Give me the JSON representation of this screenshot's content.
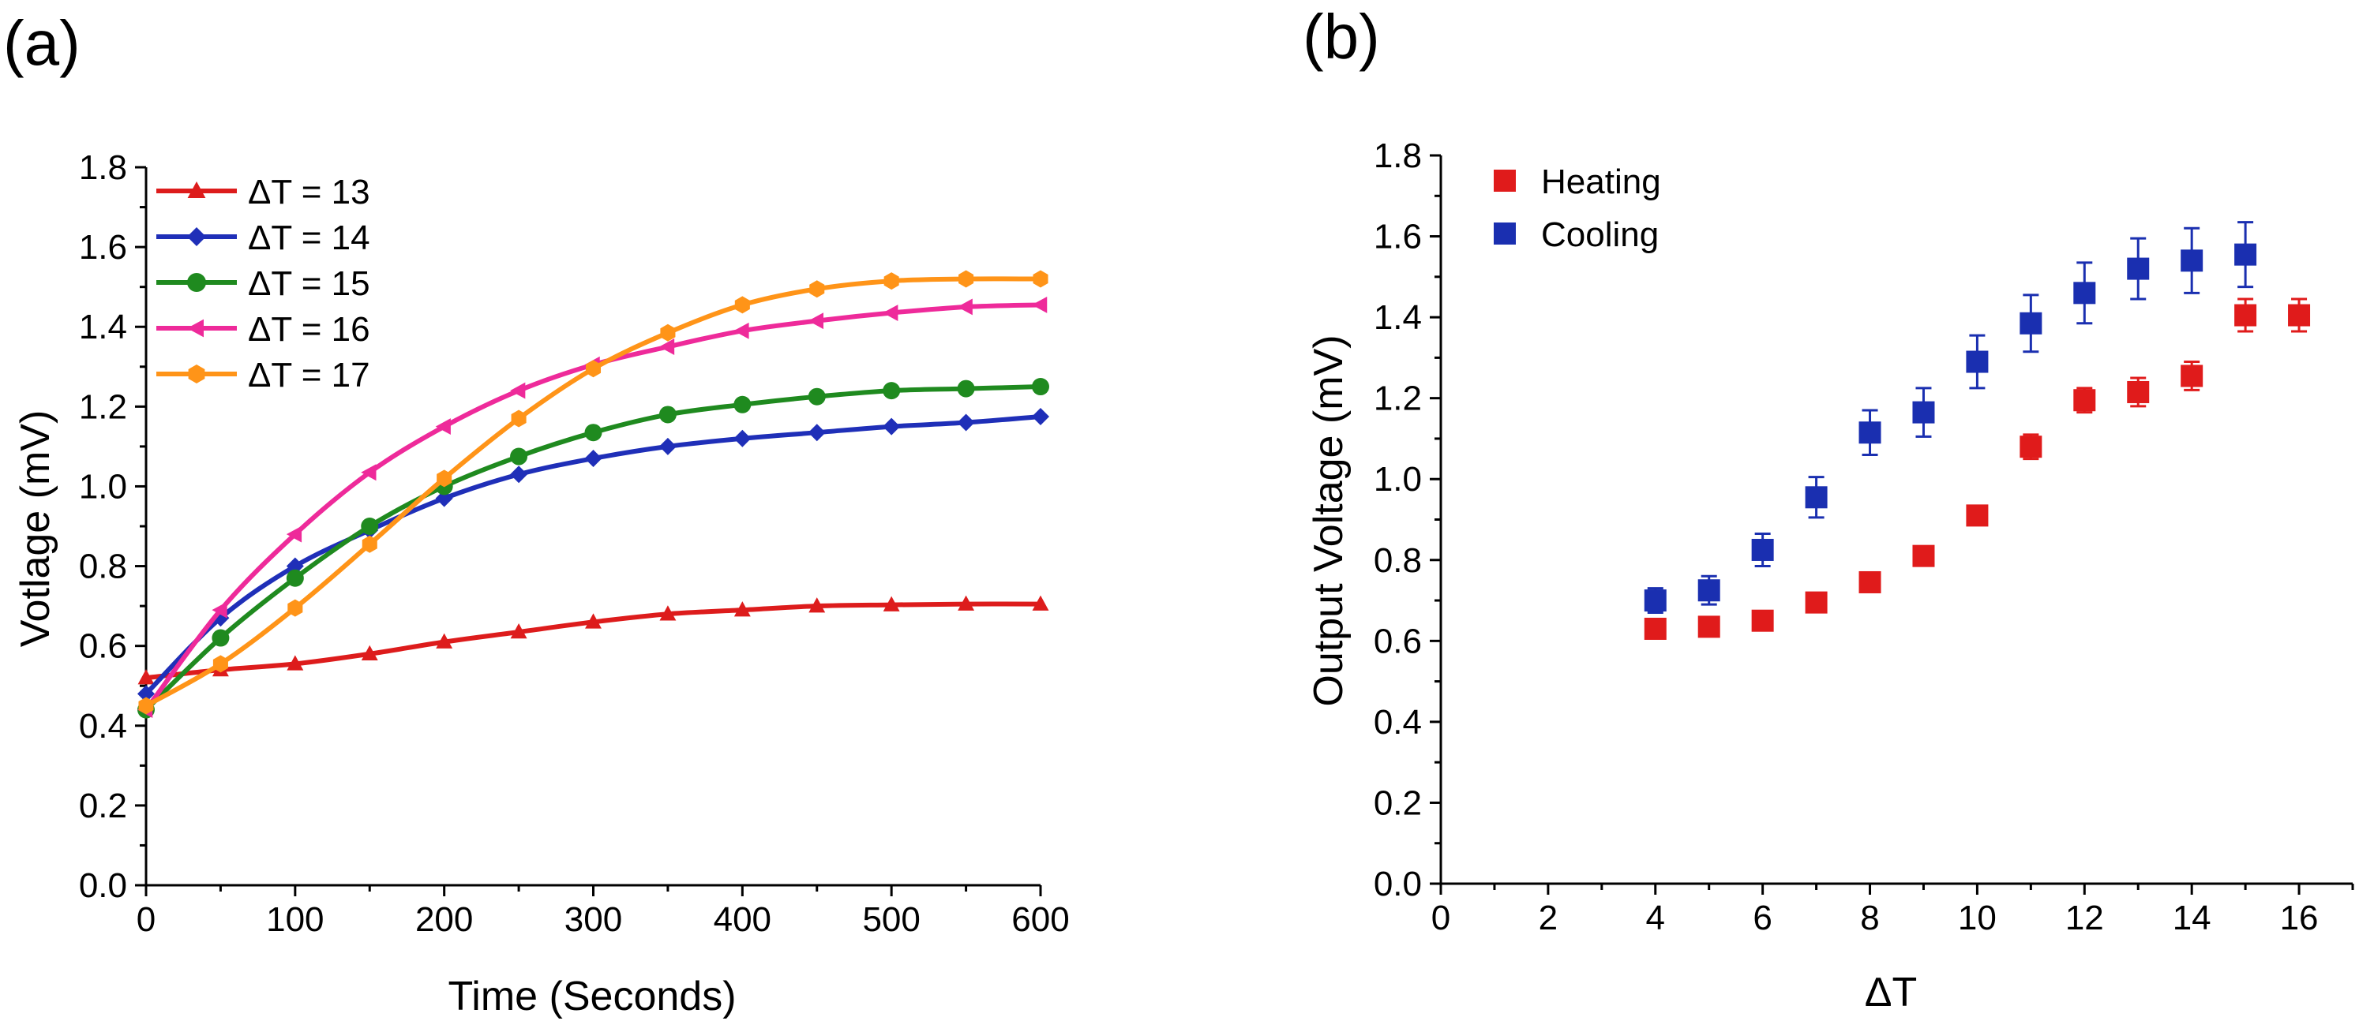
{
  "chart_data": [
    {
      "panel": "(a)",
      "type": "line",
      "title": "",
      "xlabel": "Time (Seconds)",
      "ylabel": "Votlage (mV)",
      "xlim": [
        0,
        600
      ],
      "ylim": [
        0.0,
        1.8
      ],
      "xticks": [
        "0",
        "100",
        "200",
        "300",
        "400",
        "500",
        "600"
      ],
      "yticks": [
        "0.0",
        "0.2",
        "0.4",
        "0.6",
        "0.8",
        "1.0",
        "1.2",
        "1.4",
        "1.6",
        "1.8"
      ],
      "x": [
        0,
        50,
        100,
        150,
        200,
        250,
        300,
        350,
        400,
        450,
        500,
        550,
        600
      ],
      "legend_position": "top-left",
      "series": [
        {
          "name": "ΔT = 13",
          "color": "#dd1c1c",
          "marker": "triangle-up",
          "values": [
            0.52,
            0.54,
            0.555,
            0.58,
            0.61,
            0.635,
            0.66,
            0.68,
            0.69,
            0.7,
            0.703,
            0.705,
            0.705
          ]
        },
        {
          "name": "ΔT = 14",
          "color": "#1f2fb8",
          "marker": "diamond",
          "values": [
            0.48,
            0.67,
            0.8,
            0.89,
            0.97,
            1.03,
            1.07,
            1.1,
            1.12,
            1.135,
            1.15,
            1.16,
            1.175
          ]
        },
        {
          "name": "ΔT = 15",
          "color": "#1f8a1f",
          "marker": "circle",
          "values": [
            0.44,
            0.62,
            0.77,
            0.9,
            1.0,
            1.075,
            1.135,
            1.18,
            1.205,
            1.225,
            1.24,
            1.245,
            1.25
          ]
        },
        {
          "name": "ΔT = 16",
          "color": "#ee2a9a",
          "marker": "triangle-left",
          "values": [
            0.44,
            0.69,
            0.88,
            1.035,
            1.15,
            1.24,
            1.305,
            1.35,
            1.39,
            1.415,
            1.435,
            1.45,
            1.455
          ]
        },
        {
          "name": "ΔT = 17",
          "color": "#ff9418",
          "marker": "hexagon",
          "values": [
            0.45,
            0.555,
            0.695,
            0.855,
            1.02,
            1.17,
            1.295,
            1.385,
            1.455,
            1.495,
            1.515,
            1.52,
            1.52
          ]
        }
      ]
    },
    {
      "panel": "(b)",
      "type": "scatter",
      "title": "",
      "xlabel": "ΔT",
      "ylabel": "Output Voltage (mV)",
      "xlim": [
        0,
        17
      ],
      "ylim": [
        0.0,
        1.8
      ],
      "xticks": [
        "0",
        "2",
        "4",
        "6",
        "8",
        "10",
        "12",
        "14",
        "16"
      ],
      "yticks": [
        "0.0",
        "0.2",
        "0.4",
        "0.6",
        "0.8",
        "1.0",
        "1.2",
        "1.4",
        "1.6",
        "1.8"
      ],
      "legend_position": "top-left",
      "series": [
        {
          "name": "Heating",
          "color": "#e01b1b",
          "marker": "square",
          "x": [
            4,
            5,
            6,
            7,
            8,
            9,
            10,
            11,
            12,
            13,
            14,
            15,
            16
          ],
          "values": [
            0.63,
            0.635,
            0.65,
            0.695,
            0.745,
            0.81,
            0.91,
            1.08,
            1.195,
            1.215,
            1.255,
            1.405,
            1.405
          ],
          "errors": [
            0.0,
            0.0,
            0.0,
            0.0,
            0.0,
            0.0,
            0.02,
            0.03,
            0.03,
            0.035,
            0.035,
            0.04,
            0.04
          ]
        },
        {
          "name": "Cooling",
          "color": "#1a2fb0",
          "marker": "square",
          "x": [
            4,
            5,
            6,
            7,
            8,
            9,
            10,
            11,
            12,
            13,
            14,
            15
          ],
          "values": [
            0.7,
            0.725,
            0.825,
            0.955,
            1.115,
            1.165,
            1.29,
            1.385,
            1.46,
            1.52,
            1.54,
            1.555
          ],
          "errors": [
            0.03,
            0.035,
            0.04,
            0.05,
            0.055,
            0.06,
            0.065,
            0.07,
            0.075,
            0.075,
            0.08,
            0.08
          ]
        }
      ]
    }
  ]
}
